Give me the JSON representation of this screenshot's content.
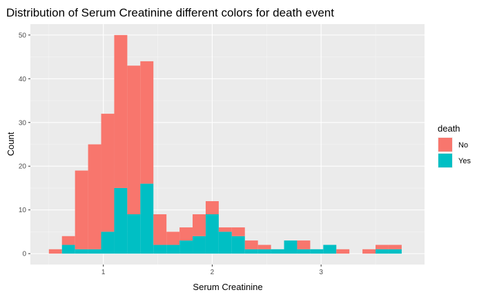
{
  "chart_data": {
    "type": "bar",
    "subtype": "stacked-histogram",
    "title": "Distribution of Serum Creatinine different colors for death event",
    "xlabel": "Serum Creatinine",
    "ylabel": "Count",
    "xlim": [
      0.33,
      3.95
    ],
    "ylim": [
      -2.5,
      52.5
    ],
    "x_ticks": [
      1,
      2,
      3
    ],
    "y_ticks": [
      0,
      10,
      20,
      30,
      40,
      50
    ],
    "grid": true,
    "bin_width": 0.12,
    "bin_starts": [
      0.5,
      0.62,
      0.74,
      0.86,
      0.98,
      1.1,
      1.22,
      1.34,
      1.46,
      1.58,
      1.7,
      1.82,
      1.94,
      2.06,
      2.18,
      2.3,
      2.42,
      2.54,
      2.66,
      2.78,
      2.9,
      3.02,
      3.14,
      3.26,
      3.38,
      3.5,
      3.62
    ],
    "series": [
      {
        "name": "No",
        "color": "#F8766D",
        "values": [
          1,
          2,
          18,
          24,
          27,
          35,
          34,
          28,
          7,
          3,
          3,
          5,
          3,
          1,
          2,
          2,
          1,
          0,
          0,
          2,
          0,
          0,
          1,
          0,
          1,
          1,
          1
        ]
      },
      {
        "name": "Yes",
        "color": "#00BFC4",
        "values": [
          0,
          2,
          1,
          1,
          5,
          15,
          9,
          16,
          2,
          2,
          3,
          4,
          9,
          5,
          4,
          1,
          1,
          1,
          3,
          1,
          1,
          2,
          0,
          0,
          0,
          1,
          1
        ]
      }
    ],
    "legend": {
      "title": "death",
      "position": "right"
    }
  }
}
